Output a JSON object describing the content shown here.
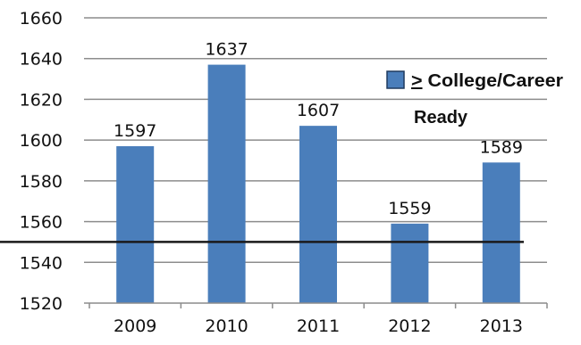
{
  "chart_data": {
    "type": "bar",
    "categories": [
      "2009",
      "2010",
      "2011",
      "2012",
      "2013"
    ],
    "values": [
      1597,
      1637,
      1607,
      1559,
      1589
    ],
    "data_labels": [
      "1597",
      "1637",
      "1607",
      "1559",
      "1589"
    ],
    "ylim": [
      1520,
      1660
    ],
    "y_ticks": [
      1520,
      1540,
      1560,
      1580,
      1600,
      1620,
      1640,
      1660
    ],
    "y_tick_labels": [
      "1520",
      "1540",
      "1560",
      "1580",
      "1600",
      "1620",
      "1640",
      "1660"
    ],
    "grid": true,
    "bar_color": "#4a7ebb",
    "benchmark": {
      "value": 1550,
      "color": "#1a1a1a",
      "legend_symbol": ">",
      "legend_label_line1": " College/Career",
      "legend_label_line2": "Ready"
    },
    "legend_position": "right"
  }
}
